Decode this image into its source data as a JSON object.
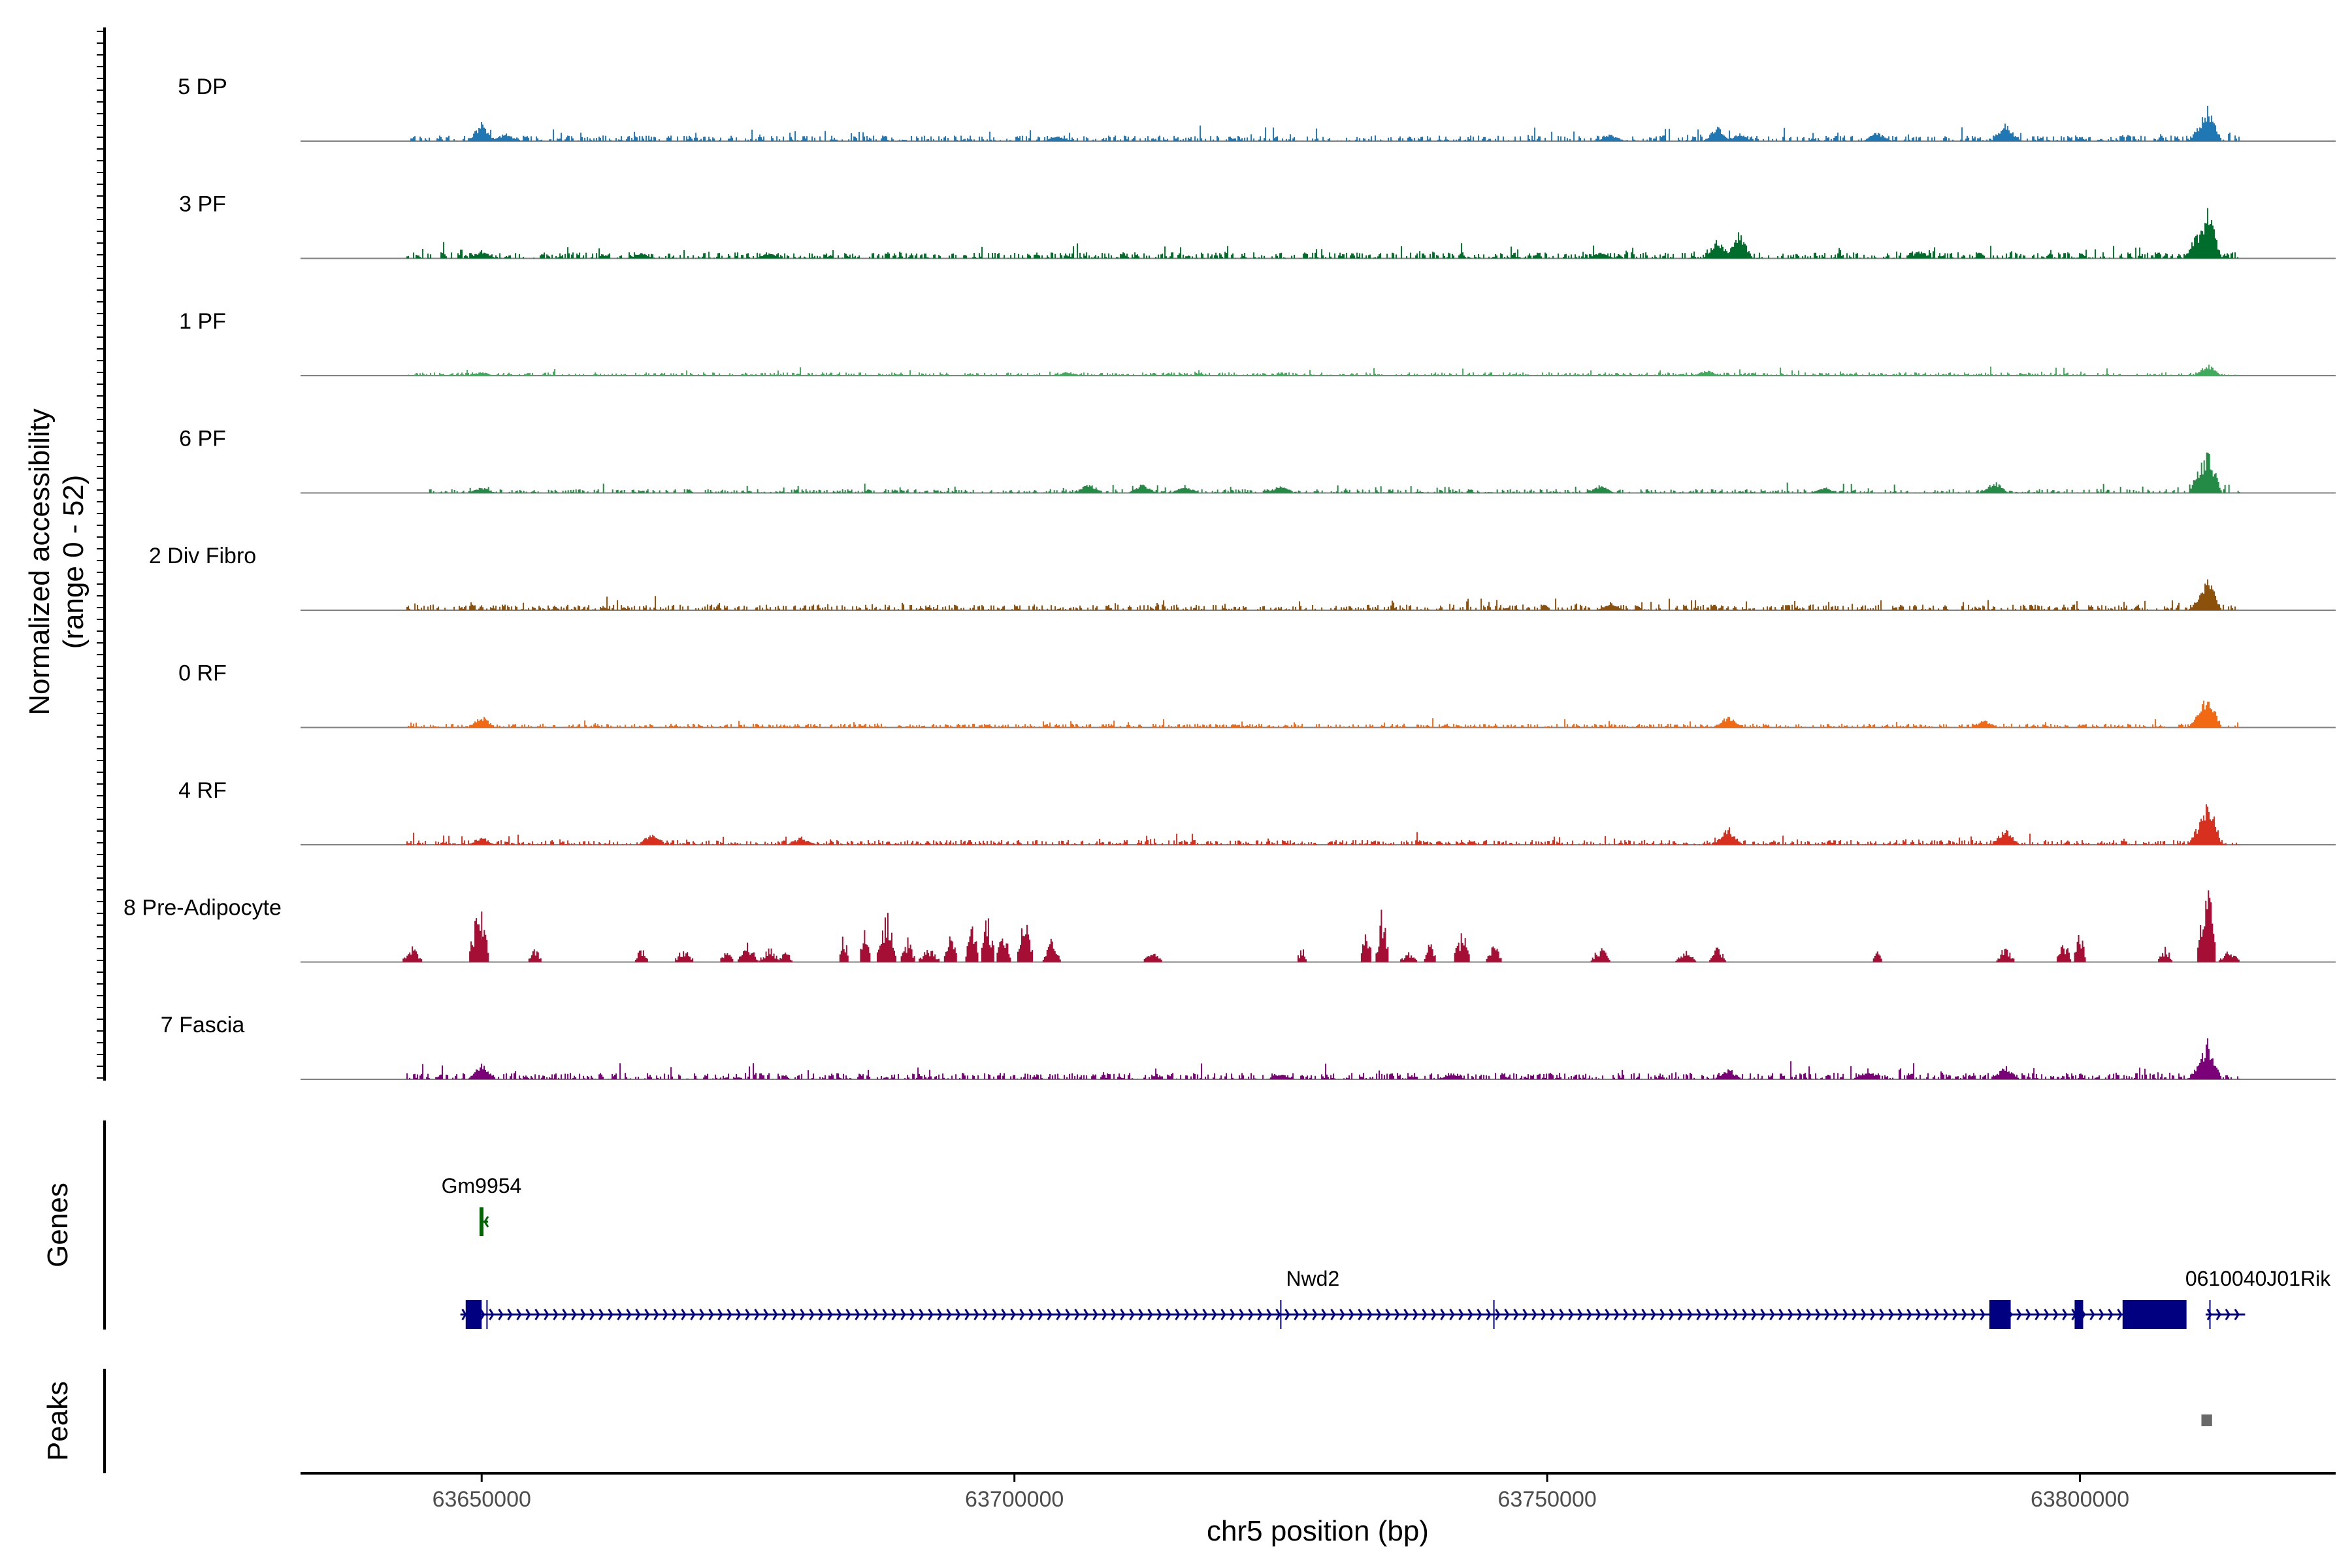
{
  "chart_data": {
    "type": "coverage-tracks",
    "ylabel_line1": "Normalized accessibility",
    "ylabel_line2": "(range 0 - 52)",
    "y_range": [
      0,
      52
    ],
    "xlabel": "chr5 position (bp)",
    "x_range": [
      63633000,
      63824000
    ],
    "x_ticks": [
      {
        "value": 63650000,
        "label": "63650000"
      },
      {
        "value": 63700000,
        "label": "63700000"
      },
      {
        "value": 63750000,
        "label": "63750000"
      },
      {
        "value": 63800000,
        "label": "63800000"
      }
    ],
    "tracks": [
      {
        "name": "5 DP",
        "color": "#1F78B4",
        "start": 63643000,
        "end": 63815000,
        "peaks": [
          [
            63650000,
            9
          ],
          [
            63652200,
            4
          ],
          [
            63704000,
            2.5
          ],
          [
            63756000,
            3.5
          ],
          [
            63766000,
            7
          ],
          [
            63768000,
            4
          ],
          [
            63781000,
            5
          ],
          [
            63793000,
            10
          ],
          [
            63812000,
            18
          ],
          [
            63811500,
            10
          ]
        ],
        "base": 1.2
      },
      {
        "name": "3 PF",
        "color": "#006D2C",
        "start": 63643000,
        "end": 63815000,
        "peaks": [
          [
            63650000,
            4
          ],
          [
            63665000,
            3
          ],
          [
            63677000,
            3
          ],
          [
            63755000,
            3
          ],
          [
            63766000,
            10
          ],
          [
            63768000,
            13
          ],
          [
            63785000,
            4
          ],
          [
            63812000,
            26
          ],
          [
            63811000,
            12
          ]
        ],
        "base": 1.3
      },
      {
        "name": "1 PF",
        "color": "#41AB5D",
        "start": 63643000,
        "end": 63815000,
        "peaks": [
          [
            63650000,
            2
          ],
          [
            63705000,
            2
          ],
          [
            63765000,
            3
          ],
          [
            63812000,
            6
          ]
        ],
        "base": 0.7
      },
      {
        "name": "6 PF",
        "color": "#238B45",
        "start": 63645000,
        "end": 63815000,
        "peaks": [
          [
            63650000,
            3
          ],
          [
            63707000,
            5
          ],
          [
            63712000,
            5
          ],
          [
            63716000,
            4
          ],
          [
            63725000,
            4
          ],
          [
            63755000,
            4
          ],
          [
            63776000,
            3
          ],
          [
            63792000,
            6
          ],
          [
            63812000,
            22
          ],
          [
            63811500,
            16
          ]
        ],
        "base": 0.8
      },
      {
        "name": "2 Div Fibro",
        "color": "#8C510A",
        "start": 63643000,
        "end": 63815000,
        "peaks": [
          [
            63756000,
            4
          ],
          [
            63812000,
            16
          ],
          [
            63811500,
            9
          ]
        ],
        "base": 1.2
      },
      {
        "name": "0 RF",
        "color": "#F16913",
        "start": 63643000,
        "end": 63815000,
        "peaks": [
          [
            63650000,
            6
          ],
          [
            63767000,
            6
          ],
          [
            63791000,
            4
          ],
          [
            63812000,
            18
          ],
          [
            63811500,
            10
          ]
        ],
        "base": 0.8
      },
      {
        "name": "4 RF",
        "color": "#D7301F",
        "start": 63643000,
        "end": 63815000,
        "peaks": [
          [
            63650000,
            4
          ],
          [
            63666000,
            6
          ],
          [
            63680000,
            4
          ],
          [
            63767000,
            9
          ],
          [
            63793000,
            8
          ],
          [
            63812000,
            25
          ],
          [
            63811500,
            14
          ]
        ],
        "base": 1.0
      },
      {
        "name": "8 Pre-Adipocyte",
        "color": "#A50F35",
        "start": 63643000,
        "end": 63815000,
        "peaks": [
          [
            63643500,
            8
          ],
          [
            63649500,
            26
          ],
          [
            63650000,
            30
          ],
          [
            63655000,
            8
          ],
          [
            63665000,
            8
          ],
          [
            63669000,
            8
          ],
          [
            63673000,
            6
          ],
          [
            63675000,
            10
          ],
          [
            63677000,
            8
          ],
          [
            63678500,
            6
          ],
          [
            63684000,
            16
          ],
          [
            63686000,
            18
          ],
          [
            63688000,
            28
          ],
          [
            63690000,
            12
          ],
          [
            63692000,
            8
          ],
          [
            63694000,
            16
          ],
          [
            63696000,
            22
          ],
          [
            63697500,
            28
          ],
          [
            63699000,
            18
          ],
          [
            63701000,
            24
          ],
          [
            63703500,
            12
          ],
          [
            63713000,
            6
          ],
          [
            63727000,
            8
          ],
          [
            63733000,
            20
          ],
          [
            63734500,
            28
          ],
          [
            63737000,
            6
          ],
          [
            63739000,
            10
          ],
          [
            63742000,
            18
          ],
          [
            63745000,
            10
          ],
          [
            63755000,
            8
          ],
          [
            63763000,
            6
          ],
          [
            63766000,
            8
          ],
          [
            63781000,
            6
          ],
          [
            63793000,
            8
          ],
          [
            63798500,
            12
          ],
          [
            63800000,
            16
          ],
          [
            63808000,
            8
          ],
          [
            63811500,
            34
          ],
          [
            63812000,
            42
          ],
          [
            63814000,
            6
          ]
        ],
        "base": 0,
        "sparse": true
      },
      {
        "name": "7 Fascia",
        "color": "#7A0177",
        "start": 63643000,
        "end": 63815000,
        "peaks": [
          [
            63650000,
            8
          ],
          [
            63725000,
            3
          ],
          [
            63741000,
            3
          ],
          [
            63767000,
            5
          ],
          [
            63780000,
            4
          ],
          [
            63793000,
            7
          ],
          [
            63812000,
            20
          ],
          [
            63811500,
            12
          ]
        ],
        "base": 1.4
      }
    ],
    "genes_label": "Genes",
    "peaks_label": "Peaks",
    "genes": [
      {
        "name": "Gm9954",
        "color": "#006400",
        "start": 63649800,
        "end": 63650600,
        "strand": "-",
        "row": 1,
        "exons": [
          [
            63649800,
            63650000
          ]
        ]
      },
      {
        "name": "Nwd2",
        "color": "#000080",
        "start": 63648000,
        "end": 63806000,
        "strand": "+",
        "row": 2,
        "exons": [
          [
            63648500,
            63650000
          ],
          [
            63791500,
            63793500
          ],
          [
            63799500,
            63800300
          ],
          [
            63804000,
            63810000
          ]
        ],
        "introns_marks": [
          63650500,
          63725000,
          63745000
        ]
      },
      {
        "name": "0610040J01Rik",
        "color": "#000080",
        "start": 63811800,
        "end": 63815500,
        "strand": "+",
        "row": 2,
        "exons": [],
        "introns_marks": [
          63812200
        ]
      }
    ],
    "peak_regions": [
      [
        63811400,
        63812400
      ]
    ]
  }
}
